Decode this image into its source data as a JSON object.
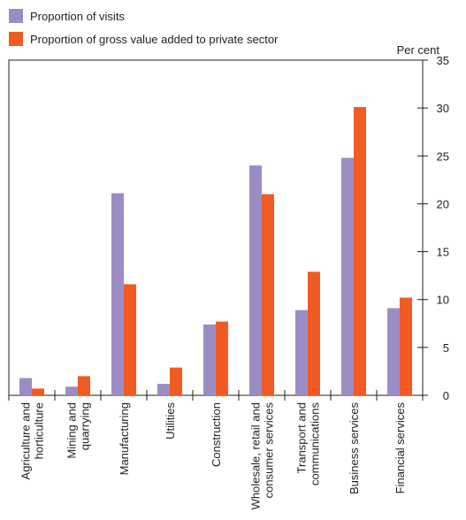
{
  "legend": {
    "series0": "Proportion of visits",
    "series1": "Proportion of gross value added to private sector"
  },
  "unit_label": "Per cent",
  "chart_data": {
    "type": "bar",
    "categories": [
      [
        "Agriculture and",
        "horticulture"
      ],
      [
        "Mining and",
        "quarrying"
      ],
      [
        "Manufacturing"
      ],
      [
        "Utilities"
      ],
      [
        "Construction"
      ],
      [
        "Wholesale, retail and",
        "consumer services"
      ],
      [
        "Transport and",
        "communications"
      ],
      [
        "Business services"
      ],
      [
        "Financial services"
      ]
    ],
    "series": [
      {
        "name": "Proportion of visits",
        "color": "#9b8dc4",
        "values": [
          1.8,
          0.9,
          21.1,
          1.2,
          7.4,
          24.0,
          8.9,
          24.8,
          9.1
        ]
      },
      {
        "name": "Proportion of gross value added to private sector",
        "color": "#f15a22",
        "values": [
          0.7,
          2.0,
          11.6,
          2.9,
          7.7,
          21.0,
          12.9,
          30.1,
          10.2
        ]
      }
    ],
    "ylim": [
      0,
      35
    ],
    "yticks": [
      0,
      5,
      10,
      15,
      20,
      25,
      30,
      35
    ],
    "ylabel": "Per cent",
    "y_axis_side": "right",
    "legend_position": "top-left",
    "grid": false
  }
}
